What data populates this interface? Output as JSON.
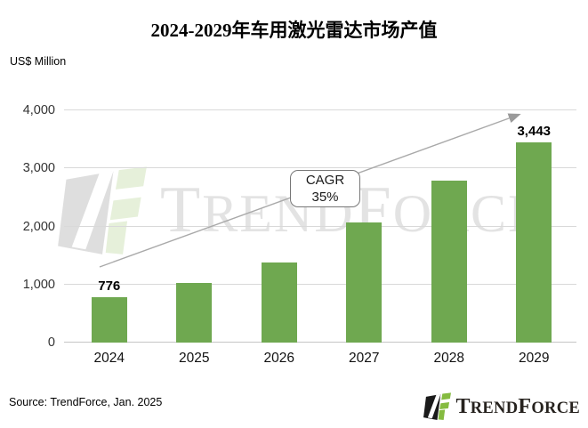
{
  "title": "2024-2029年车用激光雷达市场产值",
  "y_axis_unit": "US$ Million",
  "chart_data": {
    "type": "bar",
    "title": "2024-2029年车用激光雷达市场产值",
    "ylabel": "US$ Million",
    "categories": [
      "2024",
      "2025",
      "2026",
      "2027",
      "2028",
      "2029"
    ],
    "values": [
      776,
      1030,
      1380,
      2070,
      2790,
      3443
    ],
    "value_labels": [
      "776",
      "",
      "",
      "",
      "",
      "3,443"
    ],
    "ylim": [
      0,
      4000
    ],
    "yticks": [
      0,
      1000,
      2000,
      3000,
      4000
    ],
    "ytick_labels": [
      "0",
      "1,000",
      "2,000",
      "3,000",
      "4,000"
    ],
    "grid": true,
    "legend": "none",
    "bar_color": "#6FA850",
    "annotation": "CAGR 35%",
    "trend_arrow": "from 2024 bar to above 2029 bar"
  },
  "cagr_box": {
    "line1": "CAGR",
    "line2": "35%"
  },
  "watermark": {
    "part1": "T",
    "part2": "REND",
    "part3": "F",
    "part4": "ORCE"
  },
  "source": "Source: TrendForce, Jan. 2025",
  "logo": {
    "part1": "T",
    "part2": "REND",
    "part3": "F",
    "part4": "ORCE"
  },
  "colors": {
    "bar": "#6FA850",
    "gridline": "#d9d9d9",
    "arrow": "#a9a9a9",
    "logo_green": "#85bb40",
    "logo_black": "#1a1a1a",
    "watermark_gray": "#e3e3e3"
  }
}
